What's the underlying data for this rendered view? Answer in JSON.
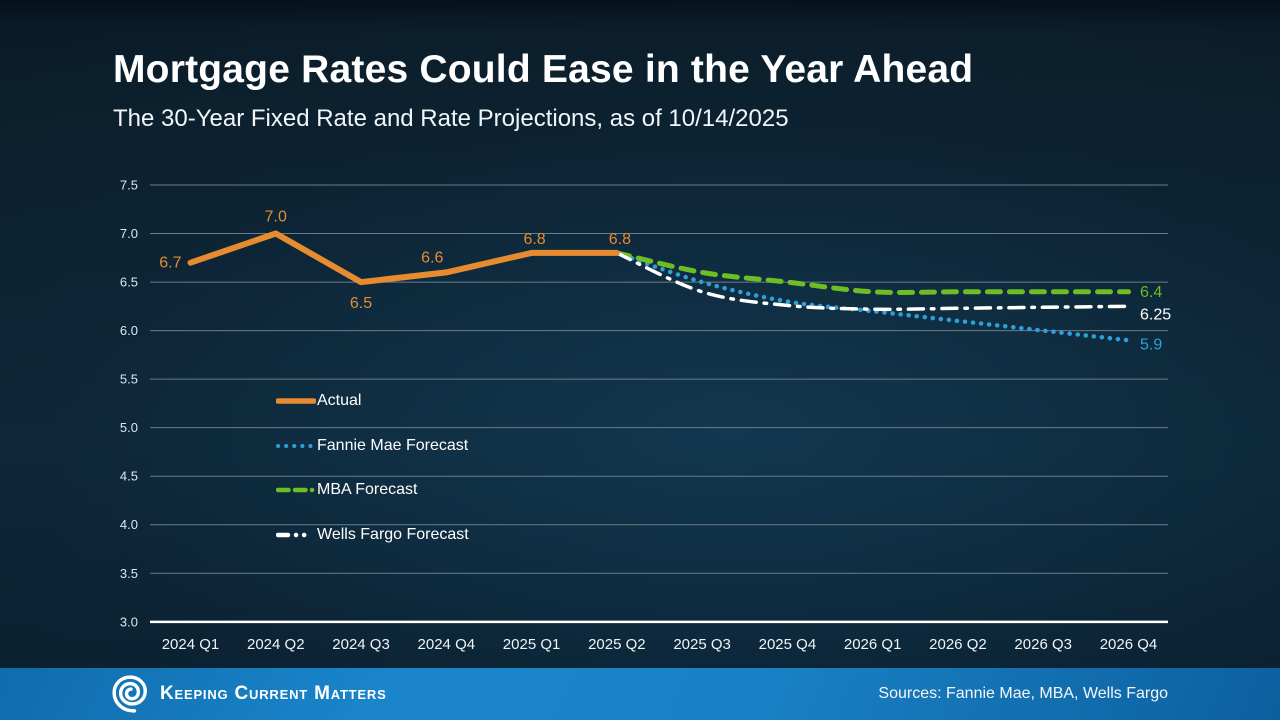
{
  "slide": {
    "title": "Mortgage Rates Could Ease in the Year Ahead",
    "subtitle": "The 30-Year Fixed Rate and Rate Projections, as of 10/14/2025"
  },
  "footer": {
    "brand": "Keeping Current Matters",
    "sources": "Sources: Fannie Mae, MBA, Wells Fargo",
    "bar_color": "#1a85ca"
  },
  "chart_data": {
    "type": "line",
    "title": "The 30-Year Fixed Rate and Rate Projections, as of 10/14/2025",
    "xlabel": "",
    "ylabel": "",
    "ylim": [
      3.0,
      7.5
    ],
    "grid": true,
    "legend_position": "inside-left-middle",
    "categories": [
      "2024 Q1",
      "2024 Q2",
      "2024 Q3",
      "2024 Q4",
      "2025 Q1",
      "2025 Q2",
      "2025 Q3",
      "2025 Q4",
      "2026 Q1",
      "2026 Q2",
      "2026 Q3",
      "2026 Q4"
    ],
    "y_ticks": [
      "7.5",
      "7.0",
      "6.5",
      "6.0",
      "5.5",
      "5.0",
      "4.5",
      "4.0",
      "3.5",
      "3.0"
    ],
    "series": [
      {
        "name": "Actual",
        "color": "#E78B30",
        "style": "solid",
        "smooth": false,
        "values": [
          6.7,
          7.0,
          6.5,
          6.6,
          6.8,
          6.8,
          null,
          null,
          null,
          null,
          null,
          null
        ],
        "point_labels": [
          "6.7",
          "7.0",
          "6.5",
          "6.6",
          "6.8",
          "6.8"
        ]
      },
      {
        "name": "Fannie Mae Forecast",
        "color": "#2F9FD8",
        "style": "dotted",
        "smooth": true,
        "values": [
          null,
          null,
          null,
          null,
          null,
          6.8,
          6.5,
          6.3,
          6.2,
          6.1,
          6.0,
          5.9
        ],
        "end_label": "5.9"
      },
      {
        "name": "MBA Forecast",
        "color": "#6CBE23",
        "style": "dashed",
        "smooth": true,
        "values": [
          null,
          null,
          null,
          null,
          null,
          6.8,
          6.6,
          6.5,
          6.4,
          6.4,
          6.4,
          6.4
        ],
        "end_label": "6.4"
      },
      {
        "name": "Wells Fargo Forecast",
        "color": "#FFFFFF",
        "style": "dashdot",
        "smooth": true,
        "values": [
          null,
          null,
          null,
          null,
          null,
          6.8,
          6.4,
          6.26,
          6.22,
          6.23,
          6.24,
          6.25
        ],
        "end_label": "6.25"
      }
    ]
  }
}
